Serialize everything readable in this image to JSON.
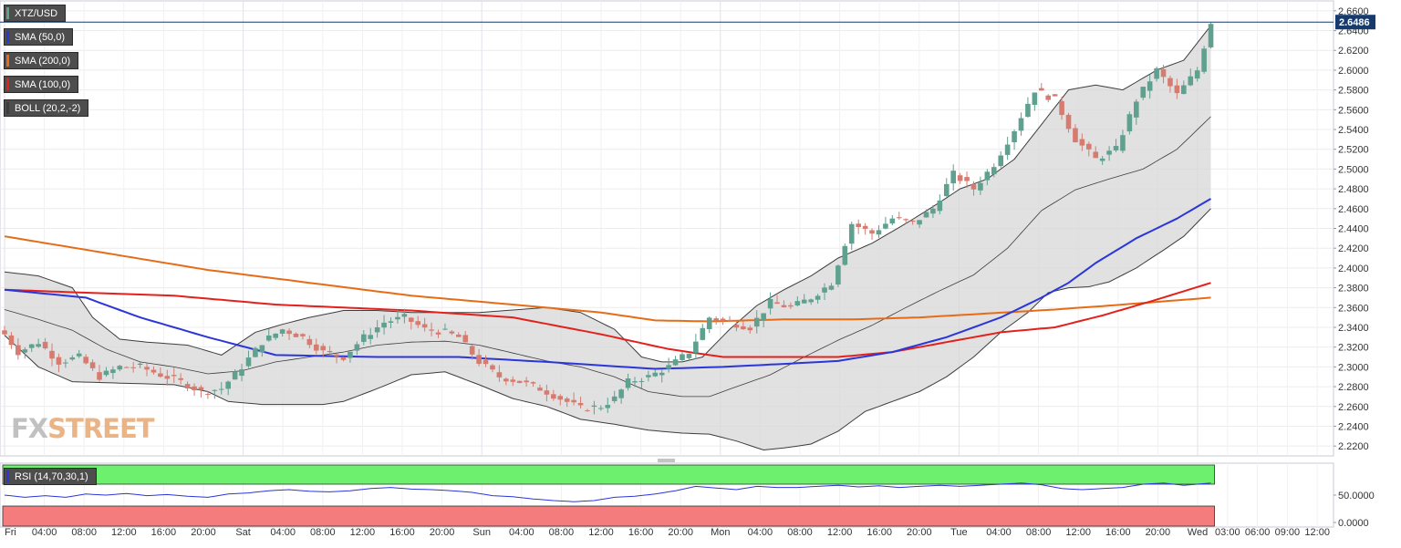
{
  "colors": {
    "up": "#5fa08f",
    "down": "#d67b6f",
    "sma50": "#2b36d9",
    "sma100": "#e3211c",
    "sma200": "#e66c17",
    "boll_fill": "#d7d7d7",
    "boll_line": "#3d3d3d",
    "rsi_over": "#6df06d",
    "rsi_under": "#f47c7c",
    "rsi_line": "#2b36d9",
    "price_tag": "#163a6b"
  },
  "legend": {
    "symbol": "XTZ/USD",
    "sma50": "SMA (50,0)",
    "sma200": "SMA (200,0)",
    "sma100": "SMA (100,0)",
    "boll": "BOLL (20,2,-2)",
    "rsi": "RSI (14,70,30,1)"
  },
  "watermark": {
    "fx": "FX",
    "street": "STREET"
  },
  "current_price_label": "2.6486",
  "chart_data": [
    {
      "type": "candlestick",
      "symbol": "XTZ/USD",
      "timeframe_note": "hourly candles",
      "ylim": [
        2.21,
        2.67
      ],
      "y_ticks": [
        "2.2200",
        "2.2400",
        "2.2600",
        "2.2800",
        "2.3000",
        "2.3200",
        "2.3400",
        "2.3600",
        "2.3800",
        "2.4000",
        "2.4200",
        "2.4400",
        "2.4600",
        "2.4800",
        "2.5000",
        "2.5200",
        "2.5400",
        "2.5600",
        "2.5800",
        "2.6000",
        "2.6200",
        "2.6400",
        "2.6600"
      ],
      "x_ticks": [
        "Fri",
        "04:00",
        "08:00",
        "12:00",
        "16:00",
        "20:00",
        "Sat",
        "04:00",
        "08:00",
        "12:00",
        "16:00",
        "20:00",
        "Sun",
        "04:00",
        "08:00",
        "12:00",
        "16:00",
        "20:00",
        "Mon",
        "04:00",
        "08:00",
        "12:00",
        "16:00",
        "20:00",
        "Tue",
        "04:00",
        "08:00",
        "12:00",
        "16:00",
        "20:00",
        "Wed",
        "03:00",
        "06:00",
        "09:00",
        "12:00"
      ],
      "grid": true,
      "current_price": 2.6486,
      "close_anchors": [
        [
          0,
          2.333
        ],
        [
          2,
          2.315
        ],
        [
          5,
          2.325
        ],
        [
          8,
          2.305
        ],
        [
          11,
          2.31
        ],
        [
          14,
          2.29
        ],
        [
          17,
          2.3
        ],
        [
          20,
          2.3
        ],
        [
          23,
          2.292
        ],
        [
          26,
          2.285
        ],
        [
          29,
          2.275
        ],
        [
          32,
          2.278
        ],
        [
          35,
          2.3
        ],
        [
          38,
          2.325
        ],
        [
          41,
          2.338
        ],
        [
          44,
          2.33
        ],
        [
          47,
          2.315
        ],
        [
          50,
          2.31
        ],
        [
          53,
          2.33
        ],
        [
          56,
          2.345
        ],
        [
          59,
          2.35
        ],
        [
          62,
          2.338
        ],
        [
          65,
          2.335
        ],
        [
          67,
          2.33
        ],
        [
          70,
          2.305
        ],
        [
          73,
          2.29
        ],
        [
          76,
          2.285
        ],
        [
          79,
          2.278
        ],
        [
          82,
          2.268
        ],
        [
          85,
          2.258
        ],
        [
          88,
          2.26
        ],
        [
          90,
          2.268
        ],
        [
          92,
          2.285
        ],
        [
          95,
          2.29
        ],
        [
          98,
          2.3
        ],
        [
          101,
          2.315
        ],
        [
          104,
          2.35
        ],
        [
          107,
          2.345
        ],
        [
          110,
          2.34
        ],
        [
          113,
          2.365
        ],
        [
          116,
          2.36
        ],
        [
          119,
          2.37
        ],
        [
          122,
          2.385
        ],
        [
          125,
          2.445
        ],
        [
          128,
          2.435
        ],
        [
          131,
          2.45
        ],
        [
          134,
          2.445
        ],
        [
          137,
          2.46
        ],
        [
          140,
          2.495
        ],
        [
          143,
          2.48
        ],
        [
          146,
          2.505
        ],
        [
          149,
          2.54
        ],
        [
          152,
          2.58
        ],
        [
          155,
          2.57
        ],
        [
          158,
          2.53
        ],
        [
          161,
          2.51
        ],
        [
          164,
          2.52
        ],
        [
          167,
          2.57
        ],
        [
          170,
          2.6
        ],
        [
          173,
          2.575
        ],
        [
          176,
          2.6
        ],
        [
          178,
          2.6486
        ]
      ],
      "sma50": [
        [
          0,
          2.378
        ],
        [
          12,
          2.37
        ],
        [
          20,
          2.35
        ],
        [
          30,
          2.33
        ],
        [
          40,
          2.312
        ],
        [
          55,
          2.31
        ],
        [
          67,
          2.31
        ],
        [
          80,
          2.305
        ],
        [
          96,
          2.298
        ],
        [
          106,
          2.3
        ],
        [
          115,
          2.303
        ],
        [
          123,
          2.306
        ],
        [
          131,
          2.315
        ],
        [
          139,
          2.33
        ],
        [
          147,
          2.35
        ],
        [
          153,
          2.37
        ],
        [
          157,
          2.385
        ],
        [
          161,
          2.405
        ],
        [
          167,
          2.43
        ],
        [
          173,
          2.45
        ],
        [
          178,
          2.47
        ]
      ],
      "sma100": [
        [
          0,
          2.378
        ],
        [
          12,
          2.375
        ],
        [
          25,
          2.372
        ],
        [
          40,
          2.363
        ],
        [
          60,
          2.357
        ],
        [
          75,
          2.35
        ],
        [
          88,
          2.333
        ],
        [
          98,
          2.318
        ],
        [
          106,
          2.31
        ],
        [
          114,
          2.31
        ],
        [
          123,
          2.31
        ],
        [
          131,
          2.315
        ],
        [
          139,
          2.325
        ],
        [
          147,
          2.335
        ],
        [
          155,
          2.34
        ],
        [
          162,
          2.352
        ],
        [
          170,
          2.368
        ],
        [
          178,
          2.385
        ]
      ],
      "sma200": [
        [
          0,
          2.432
        ],
        [
          15,
          2.415
        ],
        [
          30,
          2.398
        ],
        [
          45,
          2.385
        ],
        [
          60,
          2.372
        ],
        [
          75,
          2.363
        ],
        [
          88,
          2.355
        ],
        [
          96,
          2.347
        ],
        [
          104,
          2.346
        ],
        [
          115,
          2.348
        ],
        [
          125,
          2.348
        ],
        [
          135,
          2.35
        ],
        [
          145,
          2.354
        ],
        [
          155,
          2.358
        ],
        [
          165,
          2.363
        ],
        [
          178,
          2.37
        ]
      ],
      "boll_upper": [
        [
          0,
          2.396
        ],
        [
          5,
          2.392
        ],
        [
          10,
          2.38
        ],
        [
          13,
          2.35
        ],
        [
          17,
          2.328
        ],
        [
          21,
          2.325
        ],
        [
          27,
          2.322
        ],
        [
          32,
          2.312
        ],
        [
          37,
          2.335
        ],
        [
          41,
          2.343
        ],
        [
          45,
          2.35
        ],
        [
          50,
          2.357
        ],
        [
          55,
          2.357
        ],
        [
          60,
          2.355
        ],
        [
          64,
          2.355
        ],
        [
          70,
          2.355
        ],
        [
          76,
          2.358
        ],
        [
          80,
          2.36
        ],
        [
          85,
          2.355
        ],
        [
          90,
          2.338
        ],
        [
          94,
          2.31
        ],
        [
          97,
          2.305
        ],
        [
          100,
          2.305
        ],
        [
          103,
          2.31
        ],
        [
          107,
          2.338
        ],
        [
          111,
          2.362
        ],
        [
          115,
          2.378
        ],
        [
          119,
          2.392
        ],
        [
          123,
          2.41
        ],
        [
          128,
          2.425
        ],
        [
          133,
          2.445
        ],
        [
          137,
          2.462
        ],
        [
          141,
          2.48
        ],
        [
          145,
          2.49
        ],
        [
          149,
          2.51
        ],
        [
          153,
          2.545
        ],
        [
          157,
          2.58
        ],
        [
          161,
          2.585
        ],
        [
          165,
          2.58
        ],
        [
          170,
          2.6
        ],
        [
          174,
          2.61
        ],
        [
          178,
          2.645
        ]
      ],
      "boll_lower": [
        [
          0,
          2.332
        ],
        [
          5,
          2.3
        ],
        [
          10,
          2.285
        ],
        [
          15,
          2.284
        ],
        [
          20,
          2.283
        ],
        [
          25,
          2.282
        ],
        [
          30,
          2.275
        ],
        [
          33,
          2.265
        ],
        [
          38,
          2.262
        ],
        [
          43,
          2.262
        ],
        [
          47,
          2.262
        ],
        [
          50,
          2.265
        ],
        [
          55,
          2.278
        ],
        [
          60,
          2.292
        ],
        [
          65,
          2.295
        ],
        [
          70,
          2.282
        ],
        [
          75,
          2.268
        ],
        [
          80,
          2.26
        ],
        [
          85,
          2.247
        ],
        [
          90,
          2.242
        ],
        [
          95,
          2.236
        ],
        [
          100,
          2.233
        ],
        [
          104,
          2.232
        ],
        [
          108,
          2.225
        ],
        [
          112,
          2.216
        ],
        [
          115,
          2.218
        ],
        [
          119,
          2.222
        ],
        [
          123,
          2.235
        ],
        [
          127,
          2.255
        ],
        [
          131,
          2.265
        ],
        [
          135,
          2.275
        ],
        [
          139,
          2.29
        ],
        [
          143,
          2.31
        ],
        [
          147,
          2.335
        ],
        [
          151,
          2.355
        ],
        [
          154,
          2.375
        ],
        [
          157,
          2.38
        ],
        [
          160,
          2.381
        ],
        [
          163,
          2.386
        ],
        [
          167,
          2.4
        ],
        [
          171,
          2.418
        ],
        [
          174,
          2.432
        ],
        [
          178,
          2.46
        ]
      ],
      "boll_middle": [
        [
          0,
          2.358
        ],
        [
          5,
          2.348
        ],
        [
          10,
          2.337
        ],
        [
          15,
          2.318
        ],
        [
          20,
          2.305
        ],
        [
          25,
          2.3
        ],
        [
          30,
          2.293
        ],
        [
          35,
          2.296
        ],
        [
          40,
          2.305
        ],
        [
          45,
          2.31
        ],
        [
          50,
          2.315
        ],
        [
          55,
          2.322
        ],
        [
          60,
          2.325
        ],
        [
          65,
          2.326
        ],
        [
          70,
          2.322
        ],
        [
          75,
          2.314
        ],
        [
          80,
          2.306
        ],
        [
          85,
          2.3
        ],
        [
          90,
          2.29
        ],
        [
          95,
          2.275
        ],
        [
          100,
          2.27
        ],
        [
          104,
          2.27
        ],
        [
          108,
          2.28
        ],
        [
          113,
          2.292
        ],
        [
          118,
          2.31
        ],
        [
          123,
          2.327
        ],
        [
          128,
          2.342
        ],
        [
          133,
          2.36
        ],
        [
          138,
          2.377
        ],
        [
          143,
          2.393
        ],
        [
          148,
          2.42
        ],
        [
          153,
          2.458
        ],
        [
          158,
          2.479
        ],
        [
          163,
          2.49
        ],
        [
          168,
          2.5
        ],
        [
          173,
          2.52
        ],
        [
          178,
          2.553
        ]
      ]
    },
    {
      "type": "line",
      "name": "RSI (14,70,30,1)",
      "ylim": [
        0,
        100
      ],
      "y_ticks": [
        "50.0000",
        "0.0000"
      ],
      "overbought": 70,
      "oversold": 30,
      "values": [
        [
          0,
          50
        ],
        [
          3,
          46
        ],
        [
          6,
          49
        ],
        [
          9,
          46
        ],
        [
          12,
          52
        ],
        [
          15,
          50
        ],
        [
          18,
          53
        ],
        [
          21,
          49
        ],
        [
          24,
          51
        ],
        [
          27,
          48
        ],
        [
          30,
          46
        ],
        [
          33,
          52
        ],
        [
          36,
          54
        ],
        [
          39,
          58
        ],
        [
          42,
          60
        ],
        [
          45,
          57
        ],
        [
          48,
          56
        ],
        [
          51,
          58
        ],
        [
          54,
          62
        ],
        [
          57,
          64
        ],
        [
          60,
          61
        ],
        [
          63,
          60
        ],
        [
          66,
          58
        ],
        [
          69,
          55
        ],
        [
          72,
          49
        ],
        [
          75,
          47
        ],
        [
          78,
          43
        ],
        [
          81,
          40
        ],
        [
          84,
          38
        ],
        [
          87,
          40
        ],
        [
          90,
          46
        ],
        [
          93,
          48
        ],
        [
          96,
          52
        ],
        [
          99,
          58
        ],
        [
          102,
          66
        ],
        [
          105,
          63
        ],
        [
          108,
          60
        ],
        [
          111,
          66
        ],
        [
          114,
          64
        ],
        [
          117,
          64
        ],
        [
          120,
          66
        ],
        [
          123,
          68
        ],
        [
          126,
          65
        ],
        [
          129,
          67
        ],
        [
          132,
          64
        ],
        [
          135,
          66
        ],
        [
          138,
          68
        ],
        [
          141,
          66
        ],
        [
          144,
          68
        ],
        [
          147,
          70
        ],
        [
          150,
          72
        ],
        [
          153,
          69
        ],
        [
          156,
          62
        ],
        [
          159,
          60
        ],
        [
          162,
          62
        ],
        [
          165,
          64
        ],
        [
          168,
          70
        ],
        [
          171,
          72
        ],
        [
          174,
          68
        ],
        [
          176,
          70
        ],
        [
          178,
          72
        ]
      ]
    }
  ]
}
